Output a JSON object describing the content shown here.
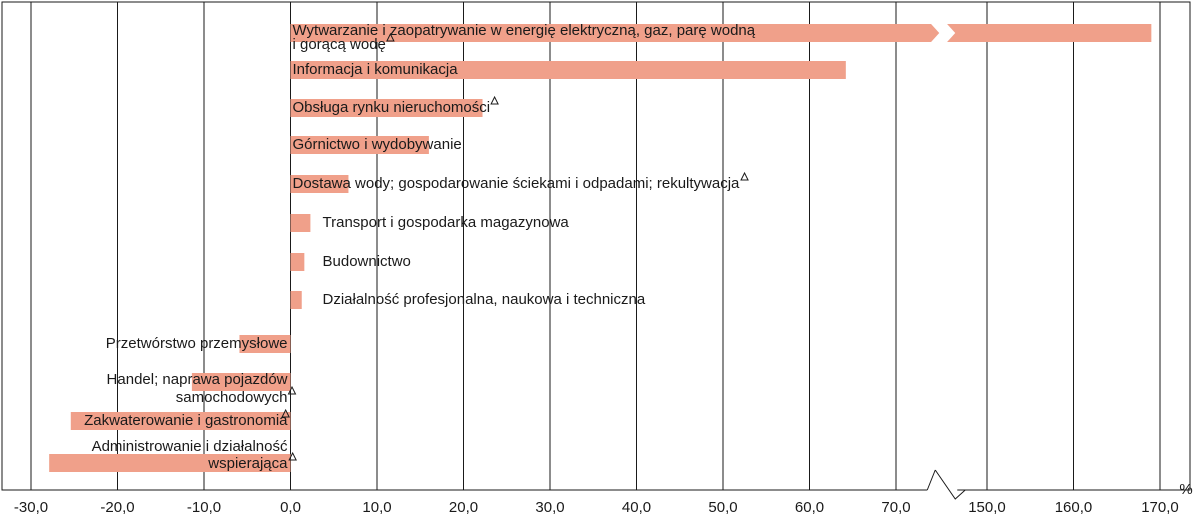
{
  "chart_data": {
    "type": "hbar",
    "categories": [
      [
        "Wytwarzanie i zaopatrywanie w energię elektryczną, gaz, parę wodną",
        "i gorącą wodę"
      ],
      [
        "Informacja i komunikacja"
      ],
      [
        "Obsługa rynku nieruchomości"
      ],
      [
        "Górnictwo i wydobywanie"
      ],
      [
        "Dostawa wody; gospodarowanie ściekami i odpadami; rekultywacja"
      ],
      [
        "Transport i gospodarka magazynowa"
      ],
      [
        "Budownictwo"
      ],
      [
        "Działalność profesjonalna, naukowa i techniczna"
      ],
      [
        "Przetwórstwo przemysłowe"
      ],
      [
        "Handel; naprawa pojazdów",
        "samochodowych"
      ],
      [
        "Zakwaterowanie i gastronomia"
      ],
      [
        "Administrowanie i działalność",
        "wspierająca"
      ]
    ],
    "values": [
      169,
      64.2,
      22.2,
      16.0,
      6.7,
      2.3,
      1.6,
      1.3,
      -5.9,
      -11.4,
      -25.4,
      -27.9
    ],
    "flagged": [
      true,
      false,
      true,
      false,
      true,
      false,
      false,
      false,
      false,
      true,
      true,
      true
    ],
    "color": "#f0a08a",
    "xlim": [
      -30,
      170
    ],
    "xbreak": [
      75,
      145
    ],
    "xticks": [
      {
        "value": -30,
        "label": "-30,0"
      },
      {
        "value": -20,
        "label": "-20,0"
      },
      {
        "value": -10,
        "label": "-10,0"
      },
      {
        "value": 0,
        "label": "0,0"
      },
      {
        "value": 10,
        "label": "10,0"
      },
      {
        "value": 20,
        "label": "20,0"
      },
      {
        "value": 30,
        "label": "30,0"
      },
      {
        "value": 40,
        "label": "40,0"
      },
      {
        "value": 50,
        "label": "50,0"
      },
      {
        "value": 60,
        "label": "60,0"
      },
      {
        "value": 70,
        "label": "70,0"
      },
      {
        "value": 150,
        "label": "150,0"
      },
      {
        "value": 160,
        "label": "160,0"
      },
      {
        "value": 170,
        "label": "170,0"
      }
    ],
    "x_unit": "%",
    "grid": true
  }
}
